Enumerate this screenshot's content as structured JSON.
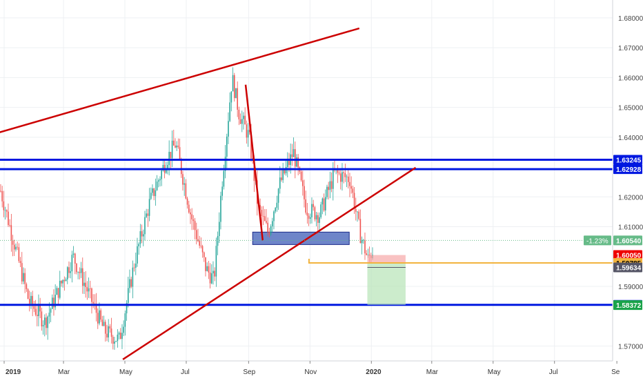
{
  "chart_data": {
    "type": "candlestick",
    "symbol_colors": {
      "up": "#26a69a",
      "down": "#ef5350",
      "wick_up": "#26a69a",
      "wick_down": "#ef5350"
    },
    "x_axis": {
      "ticks": [
        {
          "label": "2019",
          "date": "2019-01-01",
          "bold": true
        },
        {
          "label": "Mar",
          "date": "2019-03-01",
          "bold": false
        },
        {
          "label": "May",
          "date": "2019-05-01",
          "bold": false
        },
        {
          "label": "Jul",
          "date": "2019-07-01",
          "bold": false
        },
        {
          "label": "Sep",
          "date": "2019-09-01",
          "bold": false
        },
        {
          "label": "Nov",
          "date": "2019-11-01",
          "bold": false
        },
        {
          "label": "2020",
          "date": "2020-01-01",
          "bold": true
        },
        {
          "label": "Mar",
          "date": "2020-03-01",
          "bold": false
        },
        {
          "label": "May",
          "date": "2020-05-01",
          "bold": false
        },
        {
          "label": "Jul",
          "date": "2020-07-01",
          "bold": false
        },
        {
          "label": "Se",
          "date": "2020-09-01",
          "bold": false
        }
      ]
    },
    "y_axis": {
      "range": [
        1.565,
        1.686
      ],
      "ticks": [
        "1.68000",
        "1.67000",
        "1.66000",
        "1.65000",
        "1.64000",
        "1.62000",
        "1.61000",
        "1.59000",
        "1.57000"
      ],
      "tick_values": [
        1.68,
        1.67,
        1.66,
        1.65,
        1.64,
        1.62,
        1.61,
        1.59,
        1.57
      ]
    },
    "price_labels": [
      {
        "text": "1.63245",
        "value": 1.63245,
        "bg": "#0018e0",
        "color": "#ffffff"
      },
      {
        "text": "1.62928",
        "value": 1.62928,
        "bg": "#0018e0",
        "color": "#ffffff"
      },
      {
        "text": "1.60540",
        "value": 1.6054,
        "bg": "#66bb88",
        "color": "#ffffff",
        "prefix": "-1.23%"
      },
      {
        "text": "1.60050",
        "value": 1.6005,
        "bg": "#ee0000",
        "color": "#ffffff"
      },
      {
        "text": "1.59785",
        "value": 1.59785,
        "bg": "#f2b33d",
        "color": "#000000"
      },
      {
        "text": "1.59634",
        "value": 1.59634,
        "bg": "#555566",
        "color": "#ffffff"
      },
      {
        "text": "1.58381",
        "value": 1.58381,
        "bg": "#0018e0",
        "color": "#ffffff"
      },
      {
        "text": "1.58372",
        "value": 1.58372,
        "bg": "#1aa34a",
        "color": "#ffffff"
      }
    ],
    "horizontal_lines": [
      {
        "value": 1.63245,
        "color": "#0018e0"
      },
      {
        "value": 1.62928,
        "color": "#0018e0"
      },
      {
        "value": 1.58381,
        "color": "#0018e0"
      }
    ],
    "trend_lines": [
      {
        "from": [
          "2018-12-25",
          1.6414
        ],
        "to": [
          "2019-12-20",
          1.6765
        ],
        "color": "#cc0000"
      },
      {
        "from": [
          "2019-04-29",
          1.5655
        ],
        "to": [
          "2020-02-14",
          1.6298
        ],
        "color": "#cc0000"
      },
      {
        "from": [
          "2019-08-29",
          1.6576
        ],
        "to": [
          "2019-09-15",
          1.6054
        ],
        "color": "#cc0000"
      }
    ],
    "zones": [
      {
        "kind": "rectangle",
        "from": [
          "2019-09-05",
          1.6068
        ],
        "to": [
          "2019-12-10",
          1.6054
        ],
        "fill": "#4a66bb",
        "stroke": "#1a2a8a"
      }
    ],
    "position": {
      "entry": 1.59785,
      "stop": 1.6005,
      "target": 1.58381,
      "from": "2019-12-28",
      "to": "2020-02-04",
      "entry_line_from": "2019-10-31",
      "entry_line_color": "#f2b33d"
    },
    "last_price": 1.6054,
    "last_change": "-1.23%",
    "candles_seed": 7
  }
}
